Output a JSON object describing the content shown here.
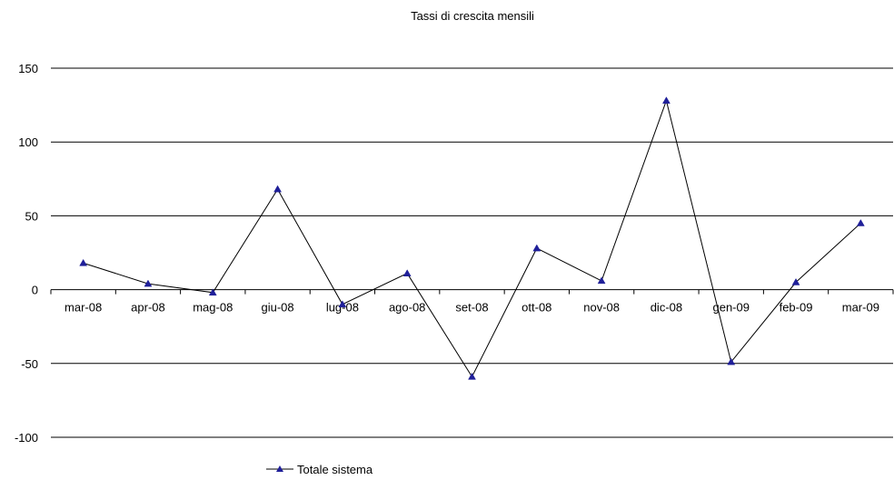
{
  "chart_data": {
    "type": "line",
    "title": "Tassi di crescita mensili",
    "xlabel": "",
    "ylabel": "",
    "categories": [
      "mar-08",
      "apr-08",
      "mag-08",
      "giu-08",
      "lug-08",
      "ago-08",
      "set-08",
      "ott-08",
      "nov-08",
      "dic-08",
      "gen-09",
      "feb-09",
      "mar-09"
    ],
    "series": [
      {
        "name": "Totale sistema",
        "values": [
          18,
          4,
          -2,
          68,
          -10,
          11,
          -59,
          28,
          6,
          128,
          -49,
          5,
          45
        ]
      }
    ],
    "ylim": [
      -100,
      150
    ],
    "yticks": [
      "-100",
      "-50",
      "0",
      "50",
      "100",
      "150"
    ],
    "grid": true,
    "legend_position": "bottom",
    "colors": {
      "line": "#000000",
      "marker": "#1f1f99",
      "grid": "#000000"
    }
  }
}
